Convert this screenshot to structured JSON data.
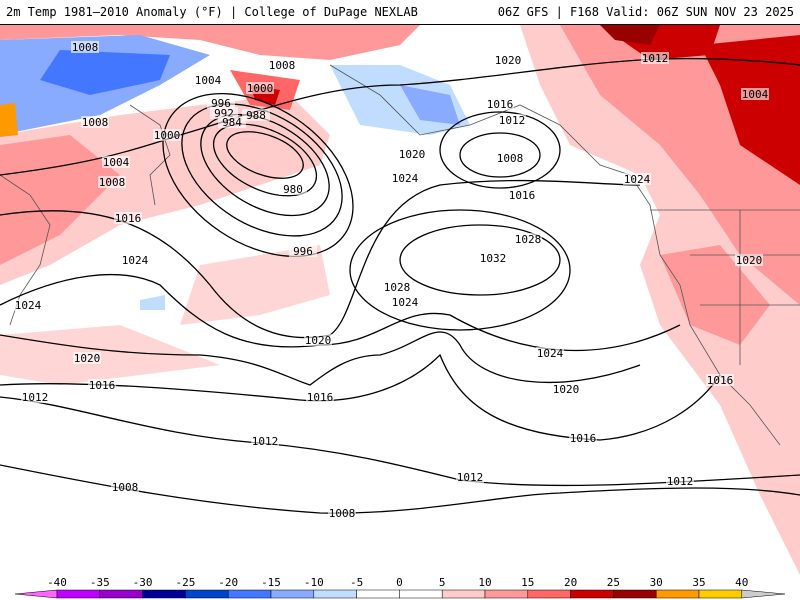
{
  "header": {
    "title_left": "2m Temp 1981–2010 Anomaly (°F) | College of DuPage NEXLAB",
    "title_right": "06Z GFS | F168 Valid: 06Z SUN NOV 23 2025"
  },
  "map": {
    "isobar_labels": [
      "1008",
      "1004",
      "1008",
      "1000",
      "996",
      "992",
      "984",
      "988",
      "1000",
      "1008",
      "1004",
      "1008",
      "1016",
      "1024",
      "1024",
      "1020",
      "1016",
      "1012",
      "980",
      "996",
      "1020",
      "1020",
      "1024",
      "1020",
      "1016",
      "1012",
      "1008",
      "1016",
      "1028",
      "1032",
      "1028",
      "1024",
      "1024",
      "1020",
      "1016",
      "1016",
      "1012",
      "1012",
      "1012",
      "1008",
      "1008",
      "1012",
      "1004",
      "1024",
      "1020",
      "1016"
    ]
  },
  "colorbar": {
    "ticks": [
      "-40",
      "-35",
      "-30",
      "-25",
      "-20",
      "-15",
      "-10",
      "-5",
      "0",
      "5",
      "10",
      "15",
      "20",
      "25",
      "30",
      "35",
      "40"
    ],
    "colors": [
      "#c000ff",
      "#9900cc",
      "#000099",
      "#0044cc",
      "#4477ff",
      "#88aaff",
      "#c0ddff",
      "#ffffff",
      "#ffffff",
      "#ffcccc",
      "#ff9999",
      "#ff6666",
      "#cc0000",
      "#990000",
      "#ff9900",
      "#ffcc00"
    ],
    "low_color": "#ff66ff",
    "high_color": "#cccccc"
  }
}
